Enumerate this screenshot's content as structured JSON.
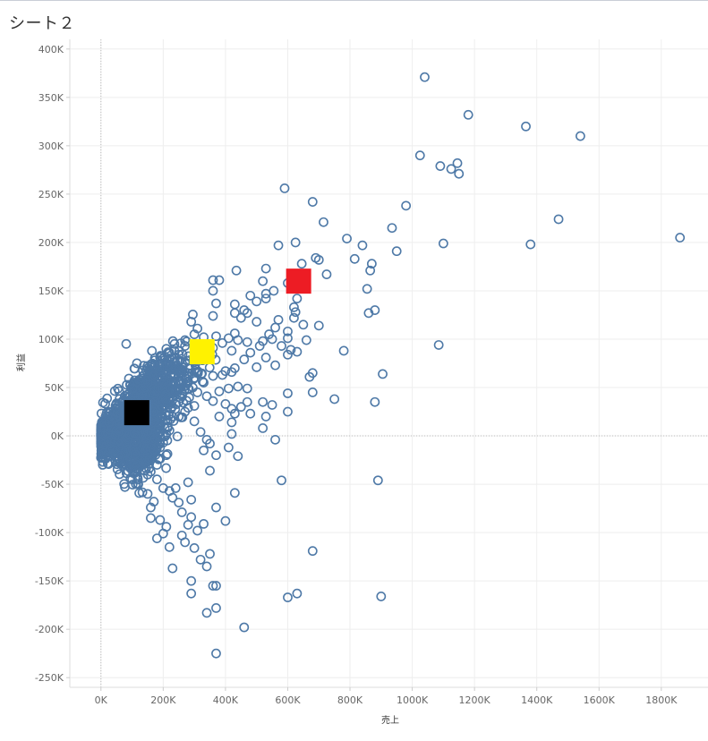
{
  "sheet": {
    "title": "シート２"
  },
  "chart_data": {
    "type": "scatter",
    "xlabel": "売上",
    "ylabel": "利益",
    "xlim": [
      -100000,
      1950000
    ],
    "ylim": [
      -260000,
      410000
    ],
    "x_ticks": [
      0,
      200000,
      400000,
      600000,
      800000,
      1000000,
      1200000,
      1400000,
      1600000,
      1800000
    ],
    "x_tick_labels": [
      "0K",
      "200K",
      "400K",
      "600K",
      "800K",
      "1000K",
      "1200K",
      "1400K",
      "1600K",
      "1800K"
    ],
    "y_ticks": [
      400000,
      350000,
      300000,
      250000,
      200000,
      150000,
      100000,
      50000,
      0,
      -50000,
      -100000,
      -150000,
      -200000,
      -250000
    ],
    "y_tick_labels": [
      "400K",
      "350K",
      "300K",
      "250K",
      "200K",
      "150K",
      "100K",
      "50K",
      "0K",
      "-50K",
      "-100K",
      "-150K",
      "-200K",
      "-250K"
    ],
    "grid": true,
    "colors": {
      "points": "#4e79a7",
      "grid": "#eeeeee",
      "zero_line": "#bbbbbb"
    },
    "series": [
      {
        "points": [
          [
            1040000,
            371000
          ],
          [
            1180000,
            332000
          ],
          [
            1365000,
            320000
          ],
          [
            1540000,
            310000
          ],
          [
            1025000,
            290000
          ],
          [
            1090000,
            279000
          ],
          [
            1125000,
            276000
          ],
          [
            1145000,
            282000
          ],
          [
            1150000,
            271000
          ],
          [
            590000,
            256000
          ],
          [
            680000,
            242000
          ],
          [
            980000,
            238000
          ],
          [
            715000,
            221000
          ],
          [
            1470000,
            224000
          ],
          [
            935000,
            215000
          ],
          [
            1860000,
            205000
          ],
          [
            790000,
            204000
          ],
          [
            1100000,
            199000
          ],
          [
            1380000,
            198000
          ],
          [
            840000,
            197000
          ],
          [
            950000,
            191000
          ],
          [
            570000,
            197000
          ],
          [
            625000,
            200000
          ],
          [
            690000,
            184000
          ],
          [
            700000,
            182000
          ],
          [
            815000,
            183000
          ],
          [
            870000,
            178000
          ],
          [
            865000,
            171000
          ],
          [
            645000,
            178000
          ],
          [
            530000,
            173000
          ],
          [
            435000,
            171000
          ],
          [
            725000,
            167000
          ],
          [
            360000,
            161000
          ],
          [
            380000,
            161000
          ],
          [
            600000,
            158000
          ],
          [
            360000,
            150000
          ],
          [
            520000,
            160000
          ],
          [
            855000,
            152000
          ],
          [
            530000,
            147000
          ],
          [
            480000,
            145000
          ],
          [
            555000,
            150000
          ],
          [
            530000,
            142000
          ],
          [
            630000,
            142000
          ],
          [
            500000,
            139000
          ],
          [
            370000,
            137000
          ],
          [
            430000,
            136000
          ],
          [
            620000,
            133000
          ],
          [
            625000,
            128000
          ],
          [
            860000,
            127000
          ],
          [
            880000,
            130000
          ],
          [
            460000,
            130000
          ],
          [
            470000,
            127000
          ],
          [
            360000,
            124000
          ],
          [
            430000,
            127000
          ],
          [
            450000,
            122000
          ],
          [
            500000,
            118000
          ],
          [
            570000,
            120000
          ],
          [
            620000,
            122000
          ],
          [
            650000,
            115000
          ],
          [
            700000,
            114000
          ],
          [
            290000,
            118000
          ],
          [
            560000,
            112000
          ],
          [
            600000,
            108000
          ],
          [
            540000,
            105000
          ],
          [
            430000,
            106000
          ],
          [
            310000,
            111000
          ],
          [
            300000,
            105000
          ],
          [
            330000,
            102000
          ],
          [
            370000,
            103000
          ],
          [
            410000,
            101000
          ],
          [
            440000,
            99000
          ],
          [
            520000,
            98000
          ],
          [
            550000,
            100000
          ],
          [
            600000,
            101000
          ],
          [
            660000,
            99000
          ],
          [
            470000,
            97000
          ],
          [
            390000,
            96000
          ],
          [
            1085000,
            94000
          ],
          [
            510000,
            93000
          ],
          [
            360000,
            91000
          ],
          [
            580000,
            93000
          ],
          [
            610000,
            89000
          ],
          [
            630000,
            87000
          ],
          [
            600000,
            84000
          ],
          [
            780000,
            88000
          ],
          [
            420000,
            88000
          ],
          [
            480000,
            86000
          ],
          [
            460000,
            79000
          ],
          [
            530000,
            81000
          ],
          [
            560000,
            73000
          ],
          [
            500000,
            71000
          ],
          [
            430000,
            70000
          ],
          [
            400000,
            67000
          ],
          [
            680000,
            65000
          ],
          [
            670000,
            61000
          ],
          [
            905000,
            64000
          ],
          [
            600000,
            44000
          ],
          [
            680000,
            45000
          ],
          [
            750000,
            38000
          ],
          [
            880000,
            35000
          ],
          [
            520000,
            35000
          ],
          [
            550000,
            32000
          ],
          [
            600000,
            25000
          ],
          [
            530000,
            20000
          ],
          [
            480000,
            23000
          ],
          [
            520000,
            8000
          ],
          [
            560000,
            -4000
          ],
          [
            440000,
            -21000
          ],
          [
            580000,
            -46000
          ],
          [
            890000,
            -46000
          ],
          [
            430000,
            -59000
          ],
          [
            370000,
            -74000
          ],
          [
            400000,
            -88000
          ],
          [
            680000,
            -119000
          ],
          [
            600000,
            -167000
          ],
          [
            630000,
            -163000
          ],
          [
            900000,
            -166000
          ],
          [
            460000,
            -198000
          ],
          [
            370000,
            -225000
          ],
          [
            340000,
            -183000
          ],
          [
            370000,
            -178000
          ],
          [
            370000,
            -155000
          ],
          [
            360000,
            -155000
          ],
          [
            290000,
            -163000
          ],
          [
            290000,
            -150000
          ],
          [
            340000,
            -135000
          ],
          [
            350000,
            -122000
          ],
          [
            320000,
            -128000
          ],
          [
            300000,
            -116000
          ],
          [
            270000,
            -110000
          ],
          [
            260000,
            -103000
          ],
          [
            230000,
            -137000
          ],
          [
            220000,
            -115000
          ],
          [
            210000,
            -94000
          ],
          [
            180000,
            -106000
          ],
          [
            200000,
            -101000
          ],
          [
            190000,
            -87000
          ],
          [
            160000,
            -85000
          ],
          [
            160000,
            -74000
          ],
          [
            170000,
            -68000
          ],
          [
            150000,
            -60000
          ],
          [
            120000,
            -50000
          ],
          [
            100000,
            -45000
          ],
          [
            330000,
            -91000
          ],
          [
            310000,
            -98000
          ],
          [
            290000,
            -84000
          ],
          [
            260000,
            -79000
          ],
          [
            280000,
            -92000
          ],
          [
            250000,
            -69000
          ],
          [
            230000,
            -64000
          ],
          [
            220000,
            -57000
          ],
          [
            200000,
            -54000
          ],
          [
            240000,
            -54000
          ],
          [
            290000,
            -66000
          ],
          [
            280000,
            -48000
          ],
          [
            330000,
            -15000
          ],
          [
            350000,
            -36000
          ],
          [
            350000,
            -8000
          ],
          [
            320000,
            4000
          ],
          [
            340000,
            -4000
          ],
          [
            300000,
            15000
          ],
          [
            420000,
            2000
          ],
          [
            410000,
            -12000
          ],
          [
            370000,
            -20000
          ],
          [
            420000,
            14000
          ],
          [
            380000,
            20000
          ],
          [
            420000,
            28000
          ],
          [
            450000,
            30000
          ],
          [
            430000,
            23000
          ],
          [
            400000,
            33000
          ],
          [
            360000,
            36000
          ],
          [
            340000,
            41000
          ],
          [
            310000,
            45000
          ],
          [
            280000,
            49000
          ],
          [
            300000,
            60000
          ],
          [
            330000,
            55000
          ],
          [
            360000,
            62000
          ],
          [
            390000,
            63000
          ],
          [
            420000,
            66000
          ],
          [
            440000,
            51000
          ],
          [
            470000,
            49000
          ],
          [
            410000,
            49000
          ],
          [
            380000,
            46000
          ],
          [
            470000,
            35000
          ],
          [
            300000,
            76000
          ],
          [
            250000,
            84000
          ],
          [
            230000,
            80000
          ],
          [
            210000,
            90000
          ],
          [
            270000,
            93000
          ],
          [
            270000,
            99000
          ],
          [
            240000,
            72000
          ],
          [
            180000,
            60000
          ],
          [
            150000,
            70000
          ],
          [
            200000,
            53000
          ],
          [
            280000,
            56000
          ],
          [
            260000,
            44000
          ],
          [
            230000,
            37000
          ],
          [
            280000,
            29000
          ],
          [
            250000,
            20000
          ],
          [
            270000,
            25000
          ],
          [
            300000,
            31000
          ],
          [
            200000,
            35000
          ],
          [
            210000,
            -20000
          ],
          [
            190000,
            -12000
          ],
          [
            180000,
            -30000
          ],
          [
            160000,
            -37000
          ],
          [
            150000,
            -40000
          ],
          [
            140000,
            -36000
          ],
          [
            180000,
            -45000
          ],
          [
            170000,
            -16000
          ],
          [
            160000,
            -20000
          ],
          [
            200000,
            -7000
          ]
        ],
        "cluster": [
          [
            0,
            0,
            22000,
            5000,
            700
          ],
          [
            60000,
            8000,
            28000,
            10000,
            700
          ],
          [
            130000,
            30000,
            45000,
            18000,
            500
          ],
          [
            200000,
            50000,
            60000,
            20000,
            250
          ],
          [
            130000,
            -10000,
            35000,
            16000,
            350
          ]
        ]
      }
    ],
    "overlays": [
      {
        "name": "black-square",
        "x": 115000,
        "y": 24000,
        "color": "#000000"
      },
      {
        "name": "yellow-square",
        "x": 325000,
        "y": 87000,
        "color": "#fff200"
      },
      {
        "name": "red-square",
        "x": 635000,
        "y": 160000,
        "color": "#ed1c24"
      }
    ]
  }
}
